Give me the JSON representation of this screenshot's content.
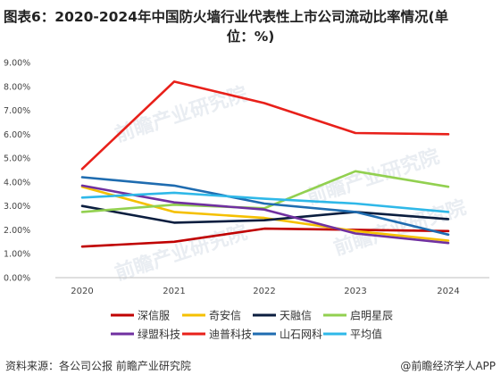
{
  "header": {
    "title_line1": "图表6：2020-2024年中国防火墙行业代表性上市公司流动比率情况(单",
    "title_line2": "位：%)"
  },
  "footer": {
    "source": "资料来源：各公司公报 前瞻产业研究院",
    "brand": "@前瞻经济学人APP"
  },
  "watermark": {
    "text": "前瞻产业研究院"
  },
  "chart_data": {
    "type": "line",
    "title": "图表6：2020-2024年中国防火墙行业代表性上市公司流动比率情况(单位：%)",
    "xlabel": "",
    "ylabel": "",
    "x": [
      "2020",
      "2021",
      "2022",
      "2023",
      "2024"
    ],
    "ylim": [
      0,
      9
    ],
    "yticks": [
      "0.00%",
      "1.00%",
      "2.00%",
      "3.00%",
      "4.00%",
      "5.00%",
      "6.00%",
      "7.00%",
      "8.00%",
      "9.00%"
    ],
    "grid": false,
    "legend": "bottom",
    "series": [
      {
        "name": "深信服",
        "color": "#c00000",
        "values": [
          1.3,
          1.5,
          2.05,
          2.0,
          1.95
        ]
      },
      {
        "name": "奇安信",
        "color": "#f5c000",
        "values": [
          3.8,
          2.75,
          2.5,
          1.95,
          1.55
        ]
      },
      {
        "name": "天融信",
        "color": "#0b1e3f",
        "values": [
          3.0,
          2.3,
          2.4,
          2.75,
          2.45
        ]
      },
      {
        "name": "启明星辰",
        "color": "#92d050",
        "values": [
          2.75,
          3.05,
          2.9,
          4.45,
          3.8
        ]
      },
      {
        "name": "绿盟科技",
        "color": "#7030a0",
        "values": [
          3.85,
          3.15,
          2.85,
          1.85,
          1.45
        ]
      },
      {
        "name": "迪普科技",
        "color": "#e8201a",
        "values": [
          4.55,
          8.2,
          7.3,
          6.05,
          6.0
        ]
      },
      {
        "name": "山石网科",
        "color": "#1f6cb0",
        "values": [
          4.2,
          3.85,
          3.1,
          2.75,
          1.8
        ]
      },
      {
        "name": "平均值",
        "color": "#2fb8e8",
        "values": [
          3.35,
          3.55,
          3.3,
          3.1,
          2.75
        ]
      }
    ]
  }
}
